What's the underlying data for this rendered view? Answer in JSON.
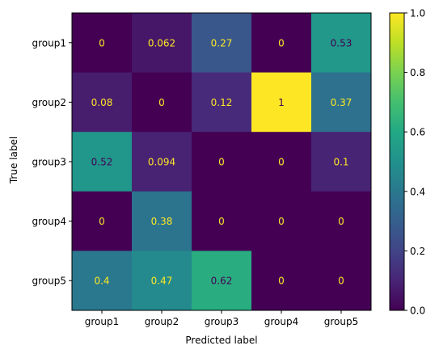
{
  "chart_data": {
    "type": "heatmap",
    "title": "",
    "xlabel": "Predicted label",
    "ylabel": "True label",
    "x_categories": [
      "group1",
      "group2",
      "group3",
      "group4",
      "group5"
    ],
    "y_categories": [
      "group1",
      "group2",
      "group3",
      "group4",
      "group5"
    ],
    "values": [
      [
        0,
        0.062,
        0.27,
        0,
        0.53
      ],
      [
        0.08,
        0,
        0.12,
        1,
        0.37
      ],
      [
        0.52,
        0.094,
        0,
        0,
        0.1
      ],
      [
        0,
        0.38,
        0,
        0,
        0
      ],
      [
        0.4,
        0.47,
        0.62,
        0,
        0
      ]
    ],
    "value_labels": [
      [
        "0",
        "0.062",
        "0.27",
        "0",
        "0.53"
      ],
      [
        "0.08",
        "0",
        "0.12",
        "1",
        "0.37"
      ],
      [
        "0.52",
        "0.094",
        "0",
        "0",
        "0.1"
      ],
      [
        "0",
        "0.38",
        "0",
        "0",
        "0"
      ],
      [
        "0.4",
        "0.47",
        "0.62",
        "0",
        "0"
      ]
    ],
    "colorscale": "viridis",
    "colorbar": {
      "range": [
        0,
        1
      ],
      "ticks": [
        0.0,
        0.2,
        0.4,
        0.6,
        0.8,
        1.0
      ],
      "tick_labels": [
        "0.0",
        "0.2",
        "0.4",
        "0.6",
        "0.8",
        "1.0"
      ]
    },
    "grid": false,
    "legend": "colorbar-right"
  }
}
